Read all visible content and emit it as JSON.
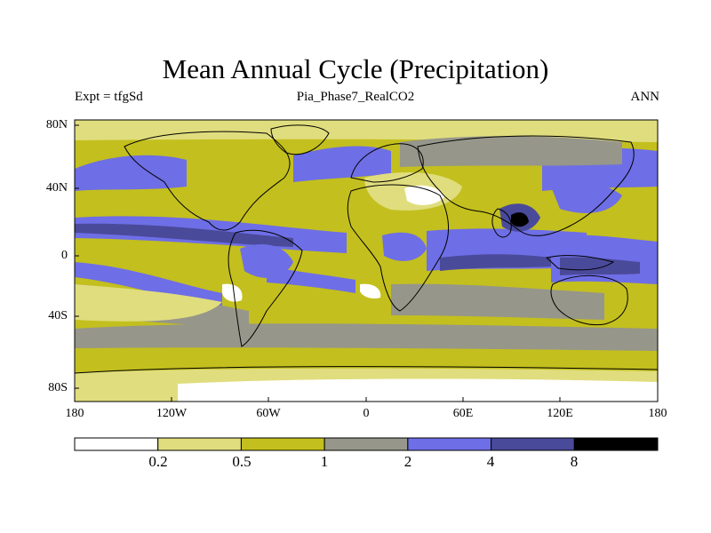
{
  "title": "Mean Annual Cycle (Precipitation)",
  "subtitle": {
    "left": "Expt = tfgSd",
    "center": "Pia_Phase7_RealCO2",
    "right": "ANN"
  },
  "map": {
    "lat_labels": [
      "80N",
      "40N",
      "0",
      "40S",
      "80S"
    ],
    "lon_labels": [
      "180",
      "120W",
      "60W",
      "0",
      "60E",
      "120E",
      "180"
    ]
  },
  "colorbar": {
    "labels": [
      "0.2",
      "0.5",
      "1",
      "2",
      "4",
      "8"
    ],
    "colors": [
      "#ffffff",
      "#e0dd7e",
      "#c3bf1e",
      "#96968a",
      "#6e6ee6",
      "#4a4a9a",
      "#000000"
    ]
  },
  "colors": {
    "ocean": "#c3bf1e",
    "coast": "#000000"
  }
}
